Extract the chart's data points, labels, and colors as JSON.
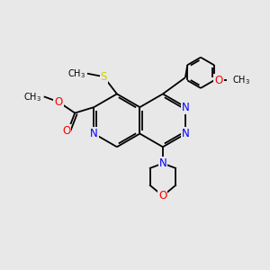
{
  "background_color": "#e8e8e8",
  "bond_color": "#000000",
  "atom_colors": {
    "N": "#0000ff",
    "O": "#ff0000",
    "S": "#cccc00",
    "C": "#000000"
  },
  "figsize": [
    3.0,
    3.0
  ],
  "dpi": 100,
  "bond_lw": 1.3,
  "font_size": 8.5,
  "font_size_small": 7.0
}
